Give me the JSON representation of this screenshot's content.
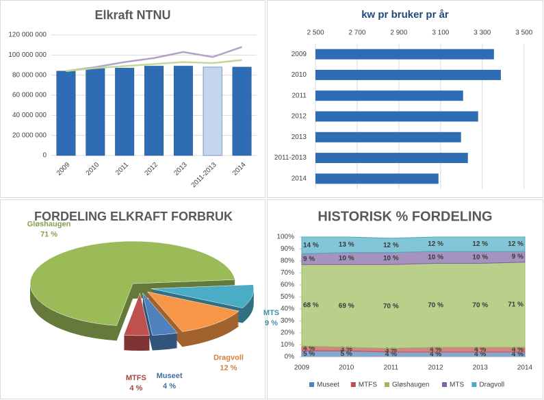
{
  "chart_data": [
    {
      "type": "bar",
      "title": "Elkraft NTNU",
      "categories": [
        "2009",
        "2010",
        "2011",
        "2012",
        "2013",
        "2011-2013",
        "2014"
      ],
      "series": [
        {
          "type": "bar",
          "colors": [
            "#2e6db4",
            "#2e6db4",
            "#2e6db4",
            "#2e6db4",
            "#2e6db4",
            "#c5d7ee",
            "#2e6db4"
          ],
          "values": [
            84000000,
            87000000,
            87000000,
            89000000,
            89000000,
            88000000,
            88000000
          ]
        },
        {
          "type": "line",
          "color": "#b3a2c7",
          "values": [
            84000000,
            88000000,
            93000000,
            97000000,
            103000000,
            98000000,
            108000000
          ]
        },
        {
          "type": "line",
          "color": "#c3d69b",
          "values": [
            84000000,
            87000000,
            89000000,
            91000000,
            93000000,
            92000000,
            95000000
          ]
        }
      ],
      "ylim": [
        0,
        120000000
      ],
      "yticks": [
        0,
        {
          "value": 20000000,
          "label": "20 000 000"
        },
        {
          "value": 40000000,
          "label": "40 000 000"
        },
        {
          "value": 60000000,
          "label": "60 000 000"
        },
        {
          "value": 80000000,
          "label": "80 000 000"
        },
        {
          "value": 100000000,
          "label": "100 000 000"
        },
        {
          "value": 120000000,
          "label": "120 000 000"
        }
      ],
      "grid": true
    },
    {
      "type": "hbar",
      "title": "kw pr bruker pr år",
      "categories": [
        "2009",
        "2010",
        "2011",
        "2012",
        "2013",
        "2011-2013",
        "2014"
      ],
      "values": [
        3356,
        3389,
        3208,
        3280,
        3198,
        3231,
        3090
      ],
      "color": "#2e6db4",
      "xlim": [
        2500,
        3550
      ],
      "xticks": [
        {
          "value": 2500,
          "label": "2 500"
        },
        {
          "value": 2700,
          "label": "2 700"
        },
        {
          "value": 2900,
          "label": "2 900"
        },
        {
          "value": 3100,
          "label": "3 100"
        },
        {
          "value": 3300,
          "label": "3 300"
        },
        {
          "value": 3500,
          "label": "3 500"
        }
      ],
      "grid": true
    },
    {
      "type": "pie",
      "title": "FORDELING ELKRAFT FORBRUK",
      "categories": [
        "Gløshaugen",
        "MTS",
        "Dragvoll",
        "Museet",
        "MTFS"
      ],
      "values": [
        71,
        9,
        12,
        4,
        4
      ],
      "value_labels": [
        "71 %",
        "9 %",
        "12 %",
        "4 %",
        "4 %"
      ],
      "colors": [
        "#9bbb59",
        "#4bacc6",
        "#f79646",
        "#4f81bd",
        "#c0504d"
      ]
    },
    {
      "type": "stacked-area",
      "title": "HISTORISK % FORDELING",
      "categories": [
        "2009",
        "2010",
        "2011",
        "2012",
        "2013",
        "2014"
      ],
      "series": [
        {
          "name": "Museet",
          "color": "#4f81bd",
          "values": [
            5,
            5,
            4,
            4,
            4,
            4
          ],
          "value_labels": [
            "5 %",
            "5 %",
            "4 %",
            "4 %",
            "4 %",
            "4 %"
          ]
        },
        {
          "name": "MTFS",
          "color": "#c0504d",
          "values": [
            4,
            3,
            3,
            4,
            4,
            4
          ],
          "value_labels": [
            "4 %",
            "3 %",
            "3 %",
            "4 %",
            "4 %",
            "4 %"
          ]
        },
        {
          "name": "Gløshaugen",
          "color": "#9bbb59",
          "values": [
            68,
            69,
            70,
            70,
            70,
            71
          ],
          "value_labels": [
            "68 %",
            "69 %",
            "70 %",
            "70 %",
            "70 %",
            "71 %"
          ]
        },
        {
          "name": "MTS",
          "color": "#8064a2",
          "values": [
            9,
            10,
            10,
            10,
            10,
            9
          ],
          "value_labels": [
            "9 %",
            "10 %",
            "10 %",
            "10 %",
            "10 %",
            "9 %"
          ]
        },
        {
          "name": "Dragvoll",
          "color": "#4bacc6",
          "values": [
            14,
            13,
            12,
            12,
            12,
            12
          ],
          "value_labels": [
            "14 %",
            "13 %",
            "12 %",
            "12 %",
            "12 %",
            "12 %"
          ]
        }
      ],
      "ylim": [
        0,
        100
      ],
      "yticks": [
        {
          "value": 0,
          "label": "0%"
        },
        {
          "value": 10,
          "label": "10%"
        },
        {
          "value": 20,
          "label": "20%"
        },
        {
          "value": 30,
          "label": "30%"
        },
        {
          "value": 40,
          "label": "40%"
        },
        {
          "value": 50,
          "label": "50%"
        },
        {
          "value": 60,
          "label": "60%"
        },
        {
          "value": 70,
          "label": "70%"
        },
        {
          "value": 80,
          "label": "80%"
        },
        {
          "value": 90,
          "label": "90%"
        },
        {
          "value": 100,
          "label": "100%"
        }
      ]
    }
  ]
}
